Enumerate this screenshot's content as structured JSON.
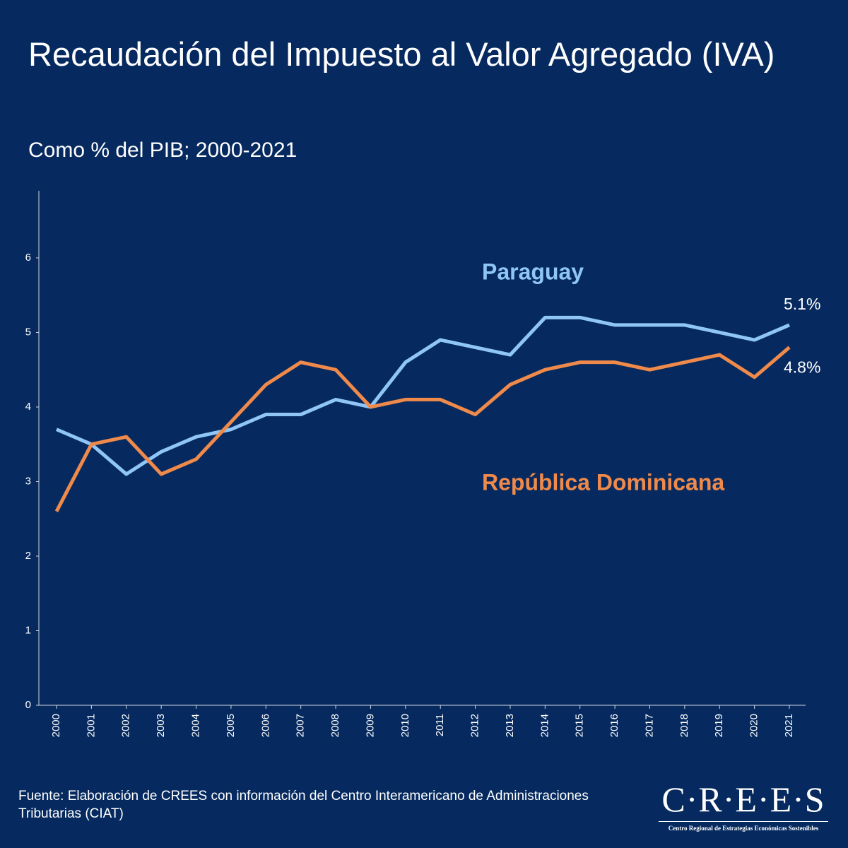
{
  "chart_data": {
    "type": "line",
    "title": "Recaudación del Impuesto al Valor Agregado (IVA)",
    "subtitle": "Como % del PIB; 2000-2021",
    "categories": [
      "2000",
      "2001",
      "2002",
      "2003",
      "2004",
      "2005",
      "2006",
      "2007",
      "2008",
      "2009",
      "2010",
      "2011",
      "2012",
      "2013",
      "2014",
      "2015",
      "2016",
      "2017",
      "2018",
      "2019",
      "2020",
      "2021"
    ],
    "series": [
      {
        "name": "Paraguay",
        "color": "#8fc6f7",
        "values": [
          3.7,
          3.5,
          3.1,
          3.4,
          3.6,
          3.7,
          3.9,
          3.9,
          4.1,
          4.0,
          4.6,
          4.9,
          4.8,
          4.7,
          5.2,
          5.2,
          5.1,
          5.1,
          5.1,
          5.0,
          4.9,
          5.1
        ],
        "value_labels": [
          null,
          null,
          null,
          null,
          null,
          null,
          null,
          null,
          null,
          null,
          null,
          null,
          null,
          null,
          null,
          null,
          null,
          null,
          null,
          null,
          null,
          "5.1%"
        ]
      },
      {
        "name": "República Dominicana",
        "color": "#f08a4b",
        "values": [
          2.6,
          3.5,
          3.6,
          3.1,
          3.3,
          3.8,
          4.3,
          4.6,
          4.5,
          4.0,
          4.1,
          4.1,
          3.9,
          4.3,
          4.5,
          4.6,
          4.6,
          4.5,
          4.6,
          4.7,
          4.4,
          4.8
        ],
        "value_labels": [
          null,
          null,
          null,
          null,
          null,
          null,
          null,
          null,
          null,
          null,
          null,
          null,
          null,
          null,
          null,
          null,
          null,
          null,
          null,
          null,
          null,
          "4.8%"
        ]
      }
    ],
    "ylim": [
      0,
      6.9
    ],
    "yticks": [
      0,
      1,
      2,
      3,
      4,
      5,
      6
    ],
    "grid": false,
    "source": "Fuente: Elaboración de CREES con información del Centro Interamericano de Administraciones Tributarias (CIAT)"
  },
  "logo": {
    "name": "C·R·E·E·S",
    "tagline": "Centro Regional de Estrategias Económicas Sostenibles"
  }
}
